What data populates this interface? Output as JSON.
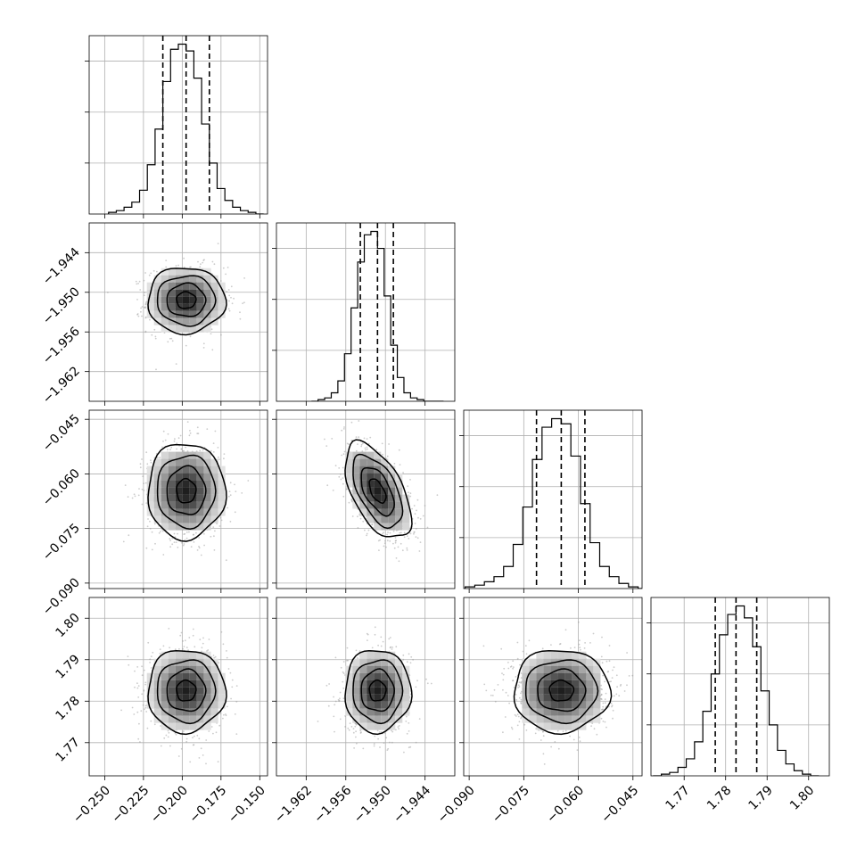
{
  "chart_data": {
    "type": "corner",
    "grid": true,
    "parameters": [
      {
        "xlim": [
          -0.26,
          -0.145
        ],
        "ticks": [
          -0.25,
          -0.225,
          -0.2,
          -0.175,
          -0.15
        ],
        "tick_labels": [
          "−0.250",
          "−0.225",
          "−0.200",
          "−0.175",
          "−0.150"
        ],
        "quantiles": [
          -0.2125,
          -0.1975,
          -0.1825
        ],
        "mean": -0.1975,
        "sd": 0.0125
      },
      {
        "xlim": [
          -1.9665,
          -1.9395
        ],
        "ticks": [
          -1.962,
          -1.956,
          -1.95,
          -1.944
        ],
        "tick_labels": [
          "−1.962",
          "−1.956",
          "−1.950",
          "−1.944"
        ],
        "quantiles": [
          -1.9538,
          -1.9512,
          -1.9488
        ],
        "mean": -1.9512,
        "sd": 0.0025
      },
      {
        "xlim": [
          -0.0915,
          -0.0425
        ],
        "ticks": [
          -0.09,
          -0.075,
          -0.06,
          -0.045
        ],
        "tick_labels": [
          "−0.090",
          "−0.075",
          "−0.060",
          "−0.045"
        ],
        "quantiles": [
          -0.0715,
          -0.0647,
          -0.0582
        ],
        "mean": -0.0647,
        "sd": 0.0066
      },
      {
        "xlim": [
          1.762,
          1.805
        ],
        "ticks": [
          1.77,
          1.78,
          1.79,
          1.8
        ],
        "tick_labels": [
          "1.77",
          "1.78",
          "1.79",
          "1.80"
        ],
        "quantiles": [
          1.7775,
          1.7825,
          1.7875
        ],
        "mean": 1.7825,
        "sd": 0.005
      }
    ],
    "histograms": [
      {
        "counts": [
          0.01,
          0.02,
          0.04,
          0.07,
          0.14,
          0.29,
          0.5,
          0.78,
          0.97,
          1.0,
          0.96,
          0.8,
          0.53,
          0.3,
          0.15,
          0.08,
          0.04,
          0.02,
          0.01,
          0
        ]
      },
      {
        "counts": [
          0,
          0.01,
          0.02,
          0.05,
          0.12,
          0.28,
          0.55,
          0.82,
          0.98,
          1.0,
          0.9,
          0.62,
          0.33,
          0.14,
          0.05,
          0.02,
          0.01,
          0,
          0,
          0
        ]
      },
      {
        "counts": [
          0.01,
          0.02,
          0.04,
          0.07,
          0.13,
          0.26,
          0.48,
          0.76,
          0.95,
          1.0,
          0.97,
          0.78,
          0.5,
          0.27,
          0.13,
          0.07,
          0.03,
          0.01,
          0,
          0
        ]
      },
      {
        "counts": [
          0,
          0.01,
          0.02,
          0.05,
          0.1,
          0.2,
          0.38,
          0.6,
          0.83,
          0.95,
          1.0,
          0.93,
          0.76,
          0.5,
          0.3,
          0.15,
          0.07,
          0.03,
          0.01,
          0
        ]
      }
    ],
    "correlations": [
      [
        1,
        0,
        0,
        0
      ],
      [
        0,
        1,
        -0.55,
        0
      ],
      [
        0,
        -0.55,
        1,
        0
      ],
      [
        0,
        0,
        0,
        1
      ]
    ],
    "contour_levels_sigma": [
      0.5,
      1,
      1.5,
      2
    ]
  }
}
